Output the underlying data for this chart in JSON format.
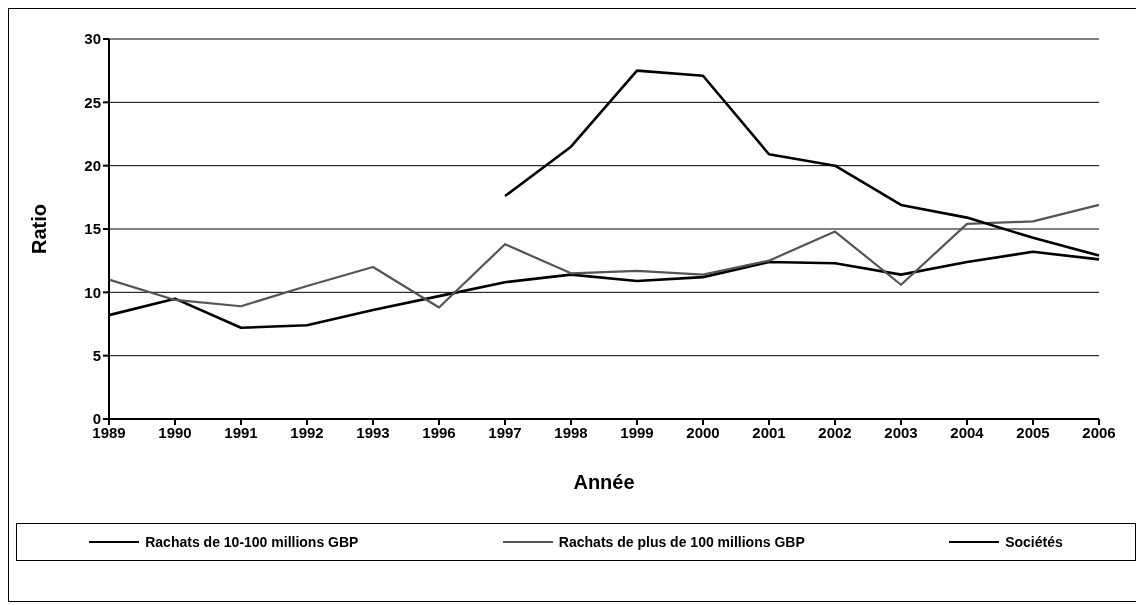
{
  "chart_data": {
    "type": "line",
    "xlabel": "Année",
    "ylabel": "Ratio",
    "categories": [
      "1989",
      "1990",
      "1991",
      "1992",
      "1993",
      "1996",
      "1997",
      "1998",
      "1999",
      "2000",
      "2001",
      "2002",
      "2003",
      "2004",
      "2005",
      "2006"
    ],
    "series": [
      {
        "name": "Rachats de 10-100 millions GBP",
        "color": "#000000",
        "values": [
          8.2,
          9.5,
          7.2,
          7.4,
          8.6,
          9.7,
          10.8,
          11.4,
          10.9,
          11.2,
          12.4,
          12.3,
          11.4,
          12.4,
          13.2,
          12.6
        ]
      },
      {
        "name": "Rachats de plus de 100 millions GBP",
        "color": "#555555",
        "values": [
          11.0,
          9.4,
          8.9,
          10.5,
          12.0,
          8.8,
          13.8,
          11.5,
          11.7,
          11.4,
          12.5,
          14.8,
          10.6,
          15.4,
          15.6,
          16.9
        ]
      },
      {
        "name": "Sociétés",
        "color": "#000000",
        "values": [
          null,
          null,
          null,
          null,
          null,
          null,
          17.6,
          21.5,
          27.5,
          27.1,
          20.9,
          20.0,
          16.9,
          15.9,
          14.3,
          12.9
        ]
      }
    ],
    "ylim": [
      0,
      30
    ],
    "yticks": [
      0,
      5,
      10,
      15,
      20,
      25,
      30
    ],
    "grid": "y",
    "legend": "bottom",
    "marker": "none",
    "line_style": "solid"
  }
}
